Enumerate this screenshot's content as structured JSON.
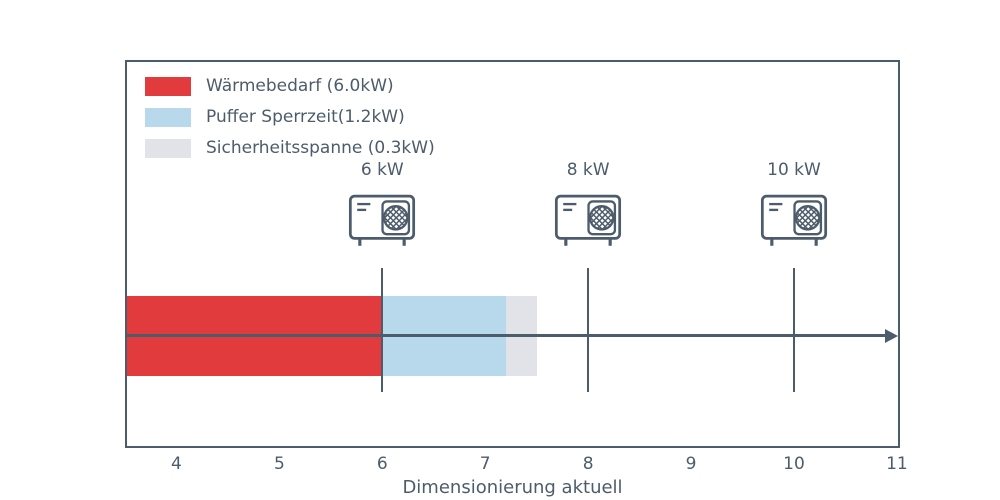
{
  "chart_data": {
    "type": "bar",
    "orientation": "horizontal",
    "title": "",
    "xlabel": "Dimensionierung aktuell",
    "ylabel": "",
    "xlim": [
      3.5,
      11.03
    ],
    "xticks": [
      4,
      5,
      6,
      7,
      8,
      9,
      10,
      11
    ],
    "grid": false,
    "legend_position": "upper-left",
    "axis_color": "#4d5c6b",
    "text_color": "#4d5c6b",
    "segments": [
      {
        "name": "Wärmebedarf",
        "value_kw": 6.0,
        "from": 3.5,
        "to": 6.0,
        "color": "#e23b3e"
      },
      {
        "name": "Puffer Sperrzeit",
        "value_kw": 1.2,
        "from": 6.0,
        "to": 7.2,
        "color": "#b8d9ec"
      },
      {
        "name": "Sicherheitsspanne",
        "value_kw": 0.3,
        "from": 7.2,
        "to": 7.5,
        "color": "#e2e3e8"
      }
    ],
    "legend": [
      {
        "label": "Wärmebedarf (6.0kW)",
        "color": "#e23b3e"
      },
      {
        "label": "Puffer Sperrzeit(1.2kW)",
        "color": "#b8d9ec"
      },
      {
        "label": "Sicherheitsspanne (0.3kW)",
        "color": "#e2e3e8"
      }
    ],
    "markers": [
      {
        "label": "6 kW",
        "x": 6,
        "icon": "heat-pump-icon"
      },
      {
        "label": "8 kW",
        "x": 8,
        "icon": "heat-pump-icon"
      },
      {
        "label": "10 kW",
        "x": 10,
        "icon": "heat-pump-icon"
      }
    ]
  }
}
